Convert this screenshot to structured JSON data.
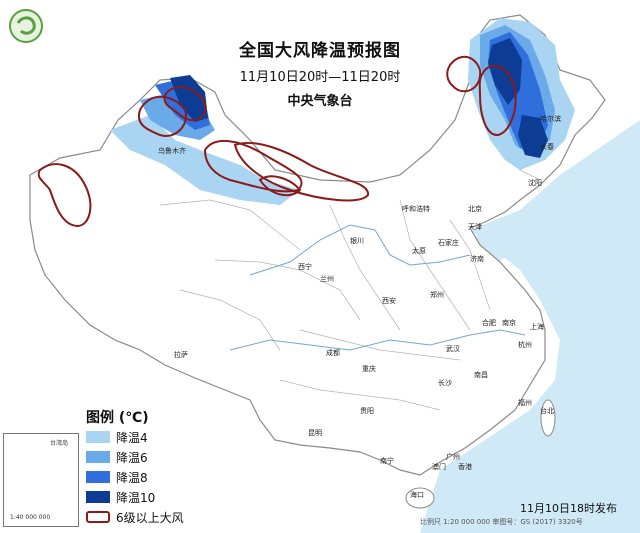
{
  "header": {
    "title": "全国大风降温预报图",
    "time_range": "11月10日20时—11日20时",
    "issuer": "中央气象台"
  },
  "legend": {
    "title": "图例 (℃)",
    "items": [
      {
        "label": "降温4",
        "color": "#a9d4f2"
      },
      {
        "label": "降温6",
        "color": "#6aaae8"
      },
      {
        "label": "降温8",
        "color": "#2f6fdc"
      },
      {
        "label": "降温10",
        "color": "#0d3c94"
      },
      {
        "label": "6级以上大风",
        "color": "#8b1a1a"
      }
    ]
  },
  "footer": {
    "issue_time": "11月10日18时发布",
    "scale_and_number": "比例尺 1:20 000 000    审图号：GS (2017) 3320号"
  },
  "cities": [
    {
      "name": "乌鲁木齐"
    },
    {
      "name": "呼和浩特"
    },
    {
      "name": "北京"
    },
    {
      "name": "天津"
    },
    {
      "name": "石家庄"
    },
    {
      "name": "太原"
    },
    {
      "name": "济南"
    },
    {
      "name": "银川"
    },
    {
      "name": "西宁"
    },
    {
      "name": "兰州"
    },
    {
      "name": "西安"
    },
    {
      "name": "郑州"
    },
    {
      "name": "合肥"
    },
    {
      "name": "南京"
    },
    {
      "name": "上海"
    },
    {
      "name": "杭州"
    },
    {
      "name": "武汉"
    },
    {
      "name": "南昌"
    },
    {
      "name": "长沙"
    },
    {
      "name": "成都"
    },
    {
      "name": "重庆"
    },
    {
      "name": "贵阳"
    },
    {
      "name": "昆明"
    },
    {
      "name": "拉萨"
    },
    {
      "name": "南宁"
    },
    {
      "name": "广州"
    },
    {
      "name": "香港"
    },
    {
      "name": "澳门"
    },
    {
      "name": "海口"
    },
    {
      "name": "福州"
    },
    {
      "name": "台北"
    },
    {
      "name": "沈阳"
    },
    {
      "name": "长春"
    },
    {
      "name": "哈尔滨"
    }
  ],
  "inset": {
    "label_a": "台湾岛",
    "label_b": "1:40 000 000"
  },
  "colors": {
    "sea": "#cfe9f6",
    "land": "#ffffff",
    "border": "#8a8a8a",
    "river": "#6fa8d6",
    "wind": "#8b1a1a"
  }
}
